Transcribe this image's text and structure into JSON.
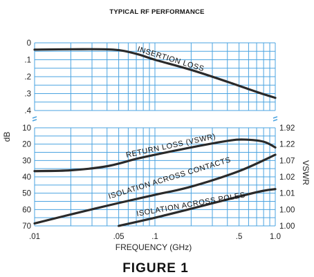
{
  "chart_data": {
    "type": "line",
    "title": "TYPICAL RF PERFORMANCE",
    "xlabel": "FREQUENCY (GHz)",
    "ylabel_left": "dB",
    "ylabel_right": "VSWR",
    "figure_caption": "FIGURE 1",
    "x_scale": "log",
    "xlim": [
      0.01,
      1.0
    ],
    "x_tick_labels": [
      {
        "value": 0.01,
        "label": ".01"
      },
      {
        "value": 0.05,
        "label": ".05"
      },
      {
        "value": 0.1,
        "label": ".1"
      },
      {
        "value": 0.5,
        "label": ".5"
      },
      {
        "value": 1.0,
        "label": "1.0"
      }
    ],
    "grid": true,
    "colors": {
      "grid": "#4aa3e0",
      "curve": "#2a2a2a",
      "text": "#222222"
    },
    "upper_panel": {
      "ylim": [
        0,
        0.4
      ],
      "y_tick_labels": [
        "0",
        ".1",
        ".2",
        ".3",
        ".4"
      ],
      "y_tick_values": [
        0,
        0.1,
        0.2,
        0.3,
        0.4
      ],
      "series": [
        {
          "name": "INSERTION LOSS",
          "x": [
            0.01,
            0.02,
            0.045,
            0.07,
            0.1,
            0.2,
            0.4,
            0.7,
            1.0
          ],
          "y": [
            0.04,
            0.038,
            0.04,
            0.065,
            0.1,
            0.16,
            0.23,
            0.29,
            0.325
          ]
        }
      ]
    },
    "lower_panel": {
      "ylim": [
        10,
        70
      ],
      "y_tick_labels": [
        "10",
        "20",
        "30",
        "40",
        "50",
        "60",
        "70"
      ],
      "y_tick_values": [
        10,
        20,
        30,
        40,
        50,
        60,
        70
      ],
      "right_tick_labels": [
        "1.92",
        "1.22",
        "1.07",
        "1.02",
        "1.01",
        "1.00",
        "1.00"
      ],
      "series": [
        {
          "name": "RETURN LOSS (VSWR)",
          "x": [
            0.01,
            0.02,
            0.04,
            0.07,
            0.1,
            0.2,
            0.4,
            0.55,
            0.8,
            1.0
          ],
          "y": [
            36.5,
            36,
            33.5,
            29,
            26.5,
            22,
            18,
            17.2,
            18.5,
            22
          ]
        },
        {
          "name": "ISOLATION ACROSS CONTACTS",
          "x": [
            0.01,
            0.02,
            0.05,
            0.1,
            0.2,
            0.5,
            1.0
          ],
          "y": [
            68.5,
            63,
            56,
            51,
            46,
            36.5,
            26.5
          ]
        },
        {
          "name": "ISOLATION ACROSS POLES",
          "x": [
            0.05,
            0.1,
            0.2,
            0.5,
            0.8,
            1.0
          ],
          "y": [
            70,
            65,
            59.5,
            52,
            48.5,
            47.5
          ]
        }
      ]
    }
  }
}
